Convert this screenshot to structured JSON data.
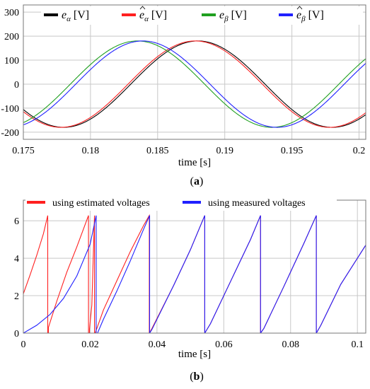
{
  "chart_data": [
    {
      "type": "line",
      "panel_label": "(a)",
      "caption": {
        "open": "(",
        "letter": "a",
        "close": ")"
      },
      "xlabel": "time [s]",
      "ylabel": "",
      "xlim": [
        0.175,
        0.2005
      ],
      "ylim": [
        -230,
        330
      ],
      "xticks": [
        0.175,
        0.18,
        0.185,
        0.19,
        0.195,
        0.2
      ],
      "xtick_labels": [
        "0.175",
        "0.18",
        "0.185",
        "0.19",
        "0.195",
        "0.2"
      ],
      "yticks": [
        -200,
        -100,
        0,
        100,
        200,
        300
      ],
      "ytick_labels": [
        "-200",
        "-100",
        "0",
        "100",
        "200",
        "300"
      ],
      "grid": true,
      "legend_placement": "top",
      "series": [
        {
          "name": "e_α [V]",
          "legend_base": "e",
          "legend_sub": "α",
          "legend_hat": false,
          "legend_unit": "[V]",
          "color": "#000000",
          "amplitude": 180,
          "frequency_hz": 50,
          "peak_time": 0.188,
          "t_start": 0.175,
          "t_end": 0.2005
        },
        {
          "name": "ê_α [V]",
          "legend_base": "e",
          "legend_sub": "α",
          "legend_hat": true,
          "legend_unit": "[V]",
          "color": "#ff2020",
          "amplitude": 180,
          "frequency_hz": 50,
          "peak_time": 0.1878,
          "t_start": 0.175,
          "t_end": 0.2005
        },
        {
          "name": "e_β [V]",
          "legend_base": "e",
          "legend_sub": "β",
          "legend_hat": false,
          "legend_unit": "[V]",
          "color": "#20a020",
          "amplitude": 180,
          "frequency_hz": 50,
          "peak_time": 0.1835,
          "t_start": 0.175,
          "t_end": 0.2005
        },
        {
          "name": "ê_β [V]",
          "legend_base": "e",
          "legend_sub": "β",
          "legend_hat": true,
          "legend_unit": "[V]",
          "color": "#2020ff",
          "amplitude": 180,
          "frequency_hz": 50,
          "peak_time": 0.1839,
          "t_start": 0.175,
          "t_end": 0.2005
        }
      ]
    },
    {
      "type": "line",
      "panel_label": "(b)",
      "caption": {
        "open": "(",
        "letter": "b",
        "close": ")"
      },
      "xlabel": "time [s]",
      "ylabel": "",
      "xlim": [
        0,
        0.1025
      ],
      "ylim": [
        0,
        7.1
      ],
      "xticks": [
        0,
        0.02,
        0.04,
        0.06,
        0.08,
        0.1
      ],
      "xtick_labels": [
        "0",
        "0.02",
        "0.04",
        "0.06",
        "0.08",
        "0.1"
      ],
      "yticks": [
        0,
        2,
        4,
        6
      ],
      "ytick_labels": [
        "0",
        "2",
        "4",
        "6"
      ],
      "grid": true,
      "legend_placement": "top",
      "series": [
        {
          "name": "using estimated voltages",
          "color": "#ff2020",
          "points": [
            [
              0,
              2.1
            ],
            [
              0.002,
              3.1
            ],
            [
              0.004,
              4.15
            ],
            [
              0.006,
              5.3
            ],
            [
              0.0073,
              6.28
            ],
            [
              0.0073,
              0
            ],
            [
              0.0075,
              0
            ],
            [
              0.0075,
              0.3
            ],
            [
              0.01,
              1.7
            ],
            [
              0.013,
              3.25
            ],
            [
              0.016,
              4.6
            ],
            [
              0.0195,
              6.28
            ],
            [
              0.0195,
              0
            ],
            [
              0.0198,
              0
            ],
            [
              0.0198,
              0.2
            ],
            [
              0.0205,
              1.5
            ],
            [
              0.021,
              4.5
            ],
            [
              0.0213,
              6.28
            ],
            [
              0.0213,
              0
            ],
            [
              0.0215,
              0
            ],
            [
              0.024,
              1.25
            ],
            [
              0.028,
              2.8
            ],
            [
              0.032,
              4.35
            ],
            [
              0.036,
              5.75
            ],
            [
              0.0377,
              6.28
            ],
            [
              0.0377,
              0
            ],
            [
              0.0385,
              0.25
            ],
            [
              0.045,
              2.55
            ],
            [
              0.05,
              4.45
            ],
            [
              0.0543,
              6.28
            ],
            [
              0.0543,
              0
            ],
            [
              0.056,
              0.5
            ],
            [
              0.062,
              2.75
            ],
            [
              0.068,
              5.0
            ],
            [
              0.071,
              6.28
            ],
            [
              0.071,
              0
            ],
            [
              0.072,
              0.25
            ],
            [
              0.078,
              2.5
            ],
            [
              0.084,
              4.8
            ],
            [
              0.0877,
              6.28
            ],
            [
              0.0877,
              0
            ],
            [
              0.089,
              0.4
            ],
            [
              0.095,
              2.6
            ],
            [
              0.1025,
              4.7
            ]
          ]
        },
        {
          "name": "using measured voltages",
          "color": "#2020ff",
          "points": [
            [
              0,
              0
            ],
            [
              0.004,
              0.42
            ],
            [
              0.008,
              1.0
            ],
            [
              0.012,
              1.85
            ],
            [
              0.016,
              3.05
            ],
            [
              0.02,
              4.75
            ],
            [
              0.0218,
              6.28
            ],
            [
              0.0218,
              0
            ],
            [
              0.0222,
              0
            ],
            [
              0.024,
              0.75
            ],
            [
              0.028,
              2.25
            ],
            [
              0.032,
              3.85
            ],
            [
              0.036,
              5.55
            ],
            [
              0.0378,
              6.28
            ],
            [
              0.0378,
              0
            ],
            [
              0.0385,
              0.2
            ],
            [
              0.045,
              2.55
            ],
            [
              0.05,
              4.45
            ],
            [
              0.0543,
              6.28
            ],
            [
              0.0543,
              0
            ],
            [
              0.056,
              0.5
            ],
            [
              0.062,
              2.75
            ],
            [
              0.068,
              5.0
            ],
            [
              0.071,
              6.28
            ],
            [
              0.071,
              0
            ],
            [
              0.072,
              0.25
            ],
            [
              0.078,
              2.5
            ],
            [
              0.084,
              4.8
            ],
            [
              0.0877,
              6.28
            ],
            [
              0.0877,
              0
            ],
            [
              0.089,
              0.4
            ],
            [
              0.095,
              2.6
            ],
            [
              0.1025,
              4.7
            ]
          ]
        }
      ]
    }
  ]
}
